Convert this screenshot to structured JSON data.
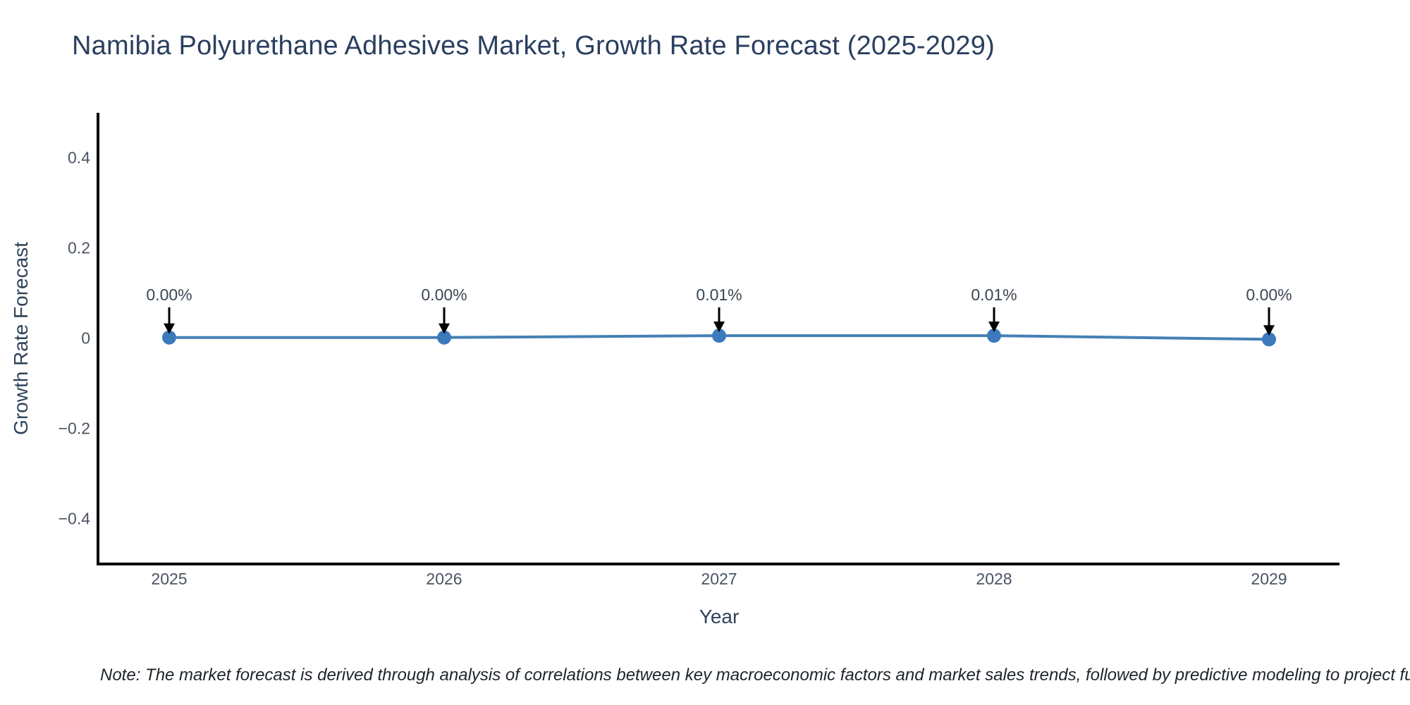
{
  "page": {
    "title": "Namibia Polyurethane Adhesives Market, Growth Rate Forecast (2025-2029)",
    "note": "Note: The market forecast is derived through analysis of correlations between key macroeconomic factors and market sales trends, followed by predictive modeling to project future sa"
  },
  "chart_data": {
    "type": "line",
    "title": "Namibia Polyurethane Adhesives Market, Growth Rate Forecast (2025-2029)",
    "xlabel": "Year",
    "ylabel": "Growth Rate Forecast",
    "categories": [
      "2025",
      "2026",
      "2027",
      "2028",
      "2029"
    ],
    "point_labels": [
      "0.00%",
      "0.00%",
      "0.01%",
      "0.01%",
      "0.00%"
    ],
    "values_pct": [
      0.0,
      0.0,
      0.01,
      0.01,
      0.0
    ],
    "y_plot_axis_units": [
      0.002,
      0.002,
      0.006,
      0.006,
      -0.002
    ],
    "ytick_values": [
      0.4,
      0.2,
      0,
      -0.2,
      -0.4
    ],
    "ytick_labels": [
      "0.4",
      "0.2",
      "0",
      "−0.2",
      "−0.4"
    ],
    "ylim": [
      -0.5,
      0.5
    ],
    "grid": false,
    "legend": "none",
    "annotation_style": "label-with-down-arrow",
    "colors": {
      "line": "#4580b5",
      "marker": "#3c7abc",
      "arrow": "#000000",
      "axis": "#000000",
      "title_text": "#2a3f5f",
      "tick_text": "#4a5463"
    }
  }
}
